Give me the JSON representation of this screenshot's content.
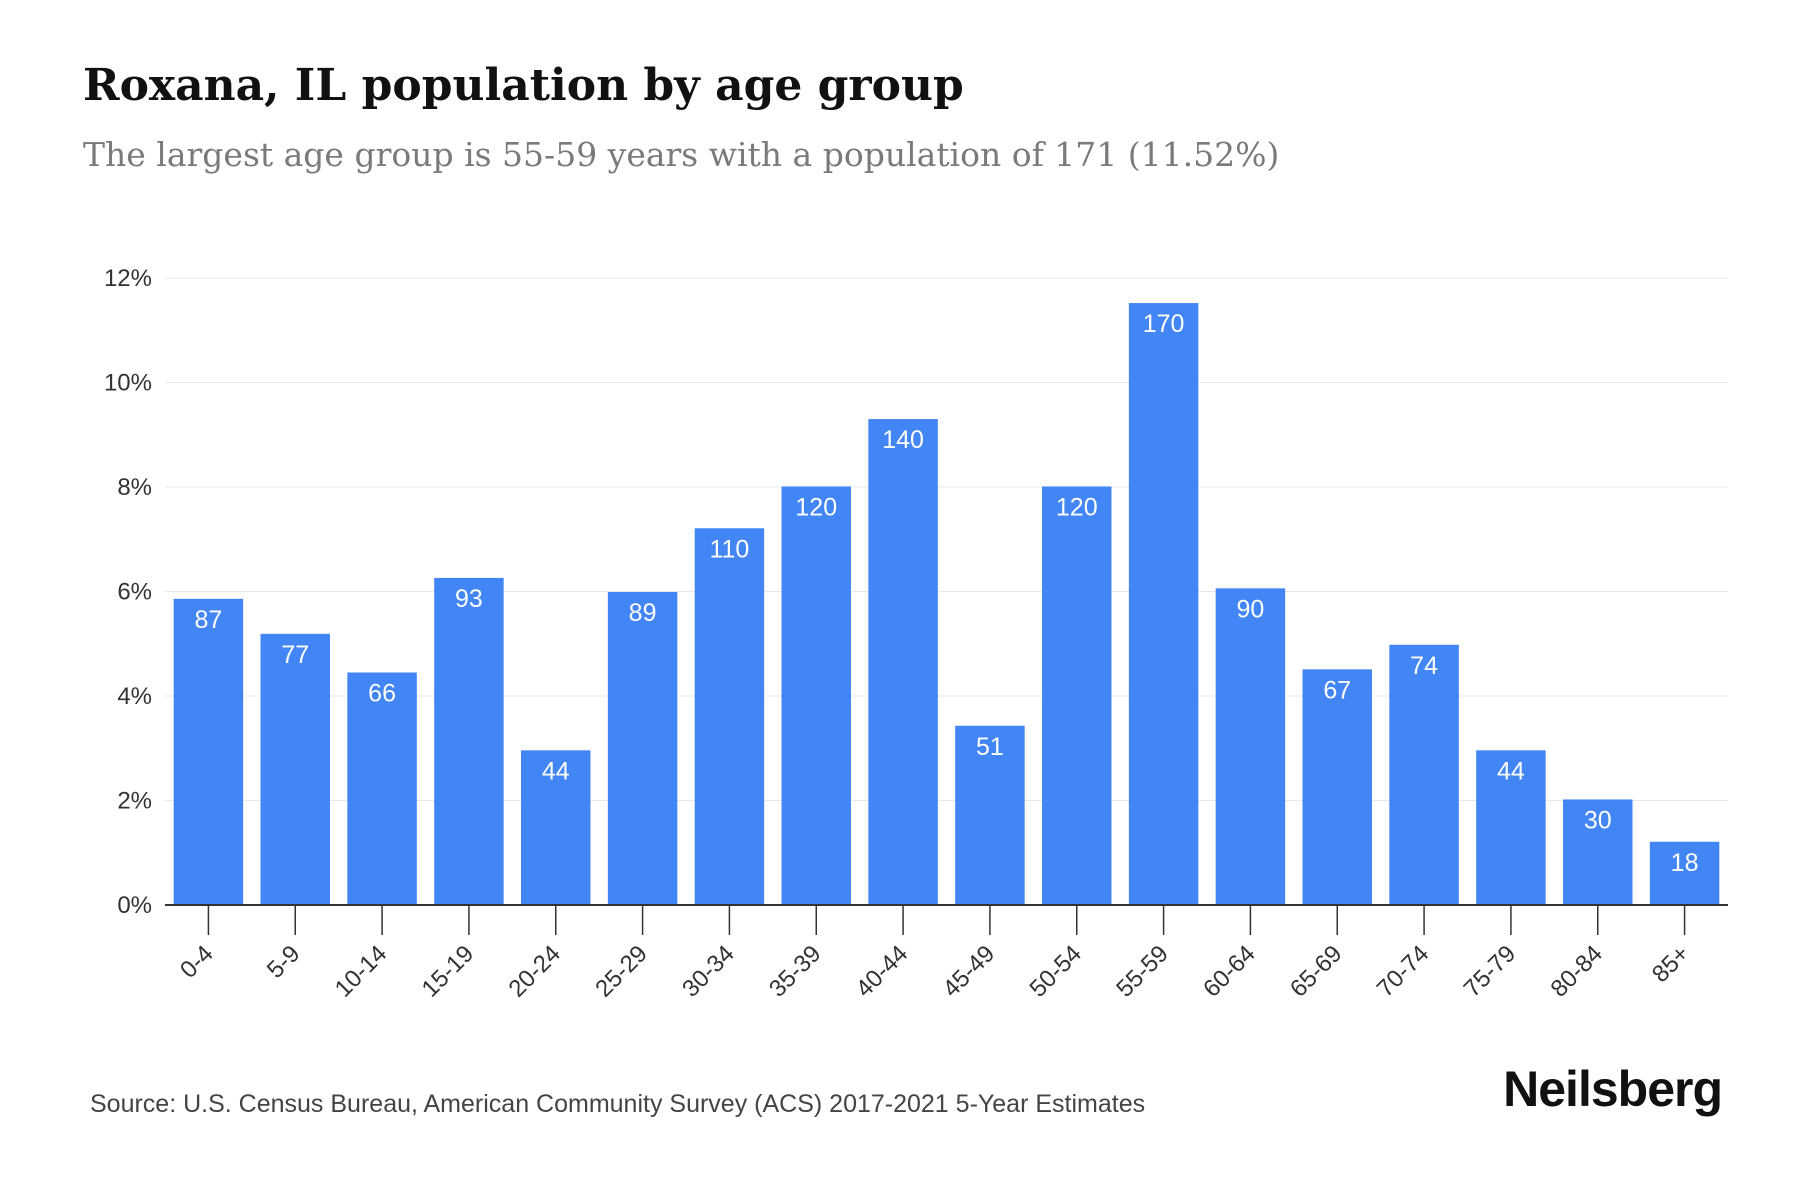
{
  "header": {
    "title": "Roxana, IL population by age group",
    "subtitle": "The largest age group is 55-59 years with a population of 171 (11.52%)"
  },
  "footer": {
    "source": "Source: U.S. Census Bureau, American Community Survey (ACS) 2017-2021 5-Year Estimates",
    "brand": "Neilsberg"
  },
  "colors": {
    "bar": "#4285f4",
    "grid": "#e8e8e8",
    "axis": "#333333"
  },
  "chart_data": {
    "type": "bar",
    "title": "Roxana, IL population by age group",
    "subtitle": "The largest age group is 55-59 years with a population of 171 (11.52%)",
    "xlabel": "",
    "ylabel": "",
    "categories": [
      "0-4",
      "5-9",
      "10-14",
      "15-19",
      "20-24",
      "25-29",
      "30-34",
      "35-39",
      "40-44",
      "45-49",
      "50-54",
      "55-59",
      "60-64",
      "65-69",
      "70-74",
      "75-79",
      "80-84",
      "85+"
    ],
    "values": [
      5.86,
      5.19,
      4.45,
      6.26,
      2.96,
      5.99,
      7.21,
      8.01,
      9.3,
      3.43,
      8.01,
      11.52,
      6.06,
      4.51,
      4.98,
      2.96,
      2.02,
      1.21
    ],
    "data_labels": [
      "87",
      "77",
      "66",
      "93",
      "44",
      "89",
      "110",
      "120",
      "140",
      "51",
      "120",
      "170",
      "90",
      "67",
      "74",
      "44",
      "30",
      "18"
    ],
    "y_ticks": [
      "0%",
      "2%",
      "4%",
      "6%",
      "8%",
      "10%",
      "12%"
    ],
    "ylim": [
      0,
      12
    ],
    "grid": true,
    "legend": "none"
  }
}
